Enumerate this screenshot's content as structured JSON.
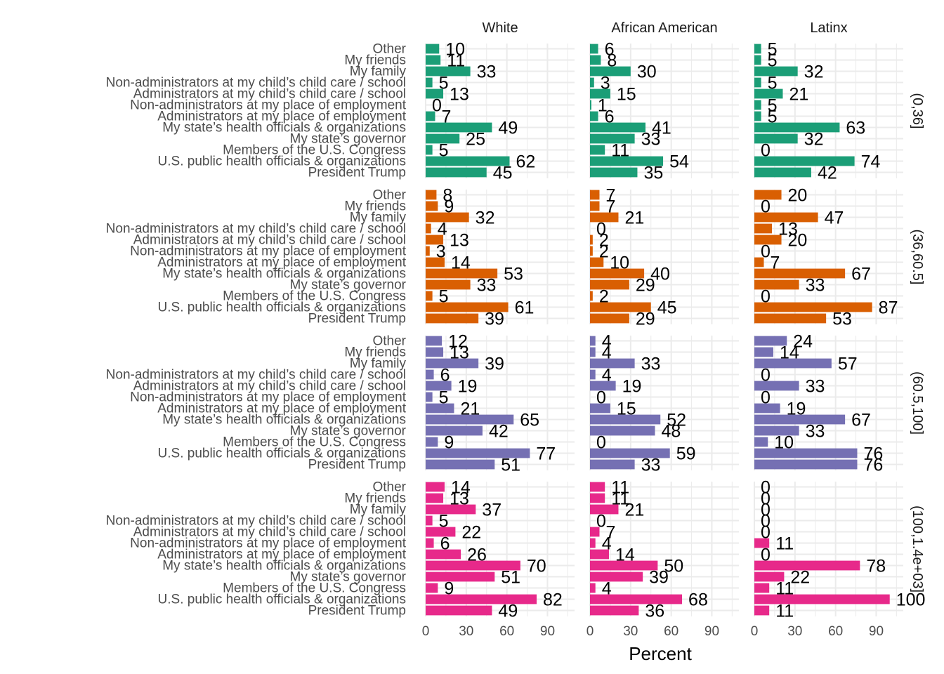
{
  "chart_data": {
    "type": "bar",
    "orientation": "horizontal",
    "xlabel": "Percent",
    "xlim": [
      0,
      110
    ],
    "xticks": [
      0,
      30,
      60,
      90
    ],
    "grid": true,
    "columns": [
      "White",
      "African American",
      "Latinx"
    ],
    "rows": [
      "(0,36]",
      "(36,60.5]",
      "(60.5,100]",
      "(100,1.4e+03]"
    ],
    "row_colors": [
      "#1b9e77",
      "#d95f02",
      "#7570b3",
      "#e7298a"
    ],
    "categories": [
      "Other",
      "My friends",
      "My family",
      "Non-administrators at my child’s child care / school",
      "Administrators at my child’s child care / school",
      "Non-administrators at my place of employment",
      "Administrators at my place of employment",
      "My state’s health officials & organizations",
      "My state’s governor",
      "Members of the U.S. Congress",
      "U.S. public health officials & organizations",
      "President Trump"
    ],
    "values": [
      [
        [
          10,
          11,
          33,
          5,
          13,
          0,
          7,
          49,
          25,
          5,
          62,
          45
        ],
        [
          6,
          8,
          30,
          3,
          15,
          1,
          6,
          41,
          33,
          11,
          54,
          35
        ],
        [
          5,
          5,
          32,
          5,
          21,
          5,
          5,
          63,
          32,
          0,
          74,
          42
        ]
      ],
      [
        [
          8,
          9,
          32,
          4,
          13,
          3,
          14,
          53,
          33,
          5,
          61,
          39
        ],
        [
          7,
          7,
          21,
          0,
          2,
          2,
          10,
          40,
          29,
          2,
          45,
          29
        ],
        [
          20,
          0,
          47,
          13,
          20,
          0,
          7,
          67,
          33,
          0,
          87,
          53
        ]
      ],
      [
        [
          12,
          13,
          39,
          6,
          19,
          5,
          21,
          65,
          42,
          9,
          77,
          51
        ],
        [
          4,
          4,
          33,
          4,
          19,
          0,
          15,
          52,
          48,
          0,
          59,
          33
        ],
        [
          24,
          14,
          57,
          0,
          33,
          0,
          19,
          67,
          33,
          10,
          76,
          76
        ]
      ],
      [
        [
          14,
          13,
          37,
          5,
          22,
          6,
          26,
          70,
          51,
          9,
          82,
          49
        ],
        [
          11,
          11,
          21,
          0,
          7,
          4,
          14,
          50,
          39,
          4,
          68,
          36
        ],
        [
          0,
          0,
          0,
          0,
          0,
          11,
          0,
          78,
          22,
          11,
          100,
          11
        ]
      ]
    ]
  }
}
